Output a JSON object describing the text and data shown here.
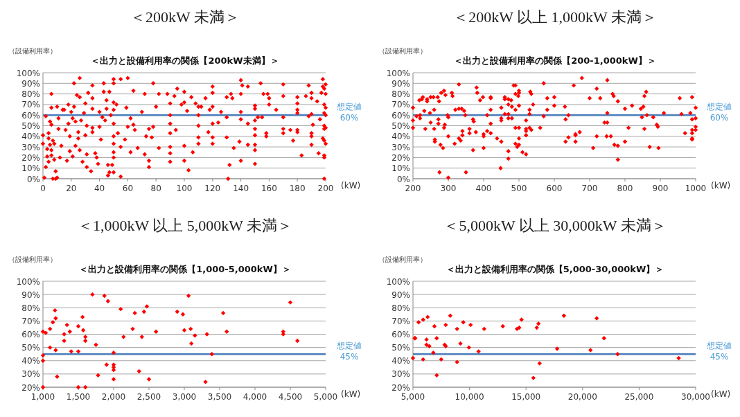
{
  "chart_data": [
    {
      "type": "scatter",
      "title": "＜200kW 未満＞",
      "subtitle": "＜出力と設備利用率の関係【200kW未満】＞",
      "ylabel": "（設備利用率）",
      "xlabel": "(kW)",
      "color": "#ff0000",
      "marker": "diamond",
      "grid": "y",
      "xlim": [
        0,
        200
      ],
      "xticks": [
        0,
        20,
        40,
        60,
        80,
        100,
        120,
        140,
        160,
        180,
        200
      ],
      "ylim": [
        0,
        100
      ],
      "yticks": [
        {
          "value": 0,
          "label": "0%"
        },
        {
          "value": 10,
          "label": "10%"
        },
        {
          "value": 20,
          "label": "20%"
        },
        {
          "value": 30,
          "label": "30%"
        },
        {
          "value": 40,
          "label": "40%"
        },
        {
          "value": 50,
          "label": "50%"
        },
        {
          "value": 60,
          "label": "60%"
        },
        {
          "value": 70,
          "label": "70%"
        },
        {
          "value": 80,
          "label": "80%"
        },
        {
          "value": 90,
          "label": "90%"
        },
        {
          "value": 100,
          "label": "100%"
        }
      ],
      "ref_lines": [
        {
          "axis": "y",
          "value": 60,
          "label": "想定値\n60%",
          "color": "#4a7ebb"
        }
      ],
      "x": [
        0,
        0,
        1,
        2,
        2,
        3,
        3,
        4,
        4,
        4,
        5,
        5,
        6,
        6,
        6,
        6,
        6,
        7,
        7,
        8,
        8,
        9,
        9,
        10,
        10,
        11,
        11,
        12,
        13,
        14,
        15,
        16,
        17,
        18,
        18,
        19,
        19,
        20,
        21,
        21,
        22,
        22,
        23,
        23,
        24,
        25,
        25,
        26,
        26,
        26,
        27,
        28,
        29,
        30,
        30,
        31,
        31,
        31,
        32,
        34,
        35,
        35,
        35,
        35,
        35,
        37,
        38,
        39,
        40,
        40,
        41,
        42,
        43,
        43,
        44,
        45,
        45,
        46,
        46,
        47,
        47,
        48,
        49,
        50,
        50,
        50,
        50,
        50,
        50,
        50,
        50,
        50,
        50,
        52,
        53,
        55,
        55,
        55,
        58,
        59,
        60,
        60,
        62,
        62,
        64,
        64,
        65,
        67,
        70,
        72,
        72,
        73,
        75,
        75,
        75,
        77,
        78,
        78,
        80,
        82,
        82,
        88,
        90,
        90,
        90,
        90,
        90,
        90,
        90,
        93,
        94,
        95,
        98,
        100,
        100,
        100,
        100,
        102,
        103,
        105,
        106,
        108,
        110,
        110,
        110,
        110,
        110,
        112,
        115,
        117,
        118,
        120,
        120,
        120,
        120,
        120,
        120,
        124,
        126,
        130,
        130,
        130,
        131,
        132,
        133,
        134,
        135,
        139,
        140,
        140,
        140,
        140,
        140,
        141,
        145,
        145,
        145,
        150,
        150,
        150,
        150,
        150,
        150,
        150,
        150,
        152,
        154,
        155,
        156,
        158,
        158,
        159,
        160,
        160,
        165,
        170,
        170,
        170,
        170,
        170,
        175,
        177,
        180,
        180,
        180,
        180,
        180,
        180,
        183,
        186,
        188,
        188,
        190,
        190,
        190,
        190,
        190,
        190,
        191,
        194,
        195,
        196,
        197,
        198,
        198,
        198,
        199,
        199,
        199,
        199,
        199,
        199,
        199,
        199,
        199,
        200,
        200,
        200,
        200,
        200,
        200
      ],
      "values": [
        41,
        33,
        1,
        59,
        11,
        28,
        21,
        43,
        38,
        16,
        54,
        32,
        80,
        67,
        51,
        27,
        22,
        36,
        0,
        18,
        33,
        7,
        0,
        68,
        1,
        57,
        47,
        20,
        31,
        65,
        65,
        46,
        17,
        52,
        70,
        40,
        26,
        63,
        21,
        57,
        90,
        68,
        31,
        54,
        79,
        44,
        38,
        95,
        77,
        27,
        55,
        16,
        62,
        41,
        71,
        50,
        23,
        11,
        81,
        7,
        88,
        76,
        66,
        48,
        44,
        24,
        20,
        14,
        63,
        49,
        37,
        58,
        90,
        82,
        55,
        74,
        66,
        13,
        3,
        6,
        82,
        60,
        13,
        94,
        90,
        72,
        65,
        52,
        40,
        33,
        25,
        20,
        6,
        70,
        43,
        94,
        2,
        30,
        37,
        67,
        95,
        49,
        57,
        25,
        83,
        51,
        46,
        29,
        63,
        80,
        23,
        40,
        47,
        17,
        11,
        39,
        90,
        49,
        68,
        80,
        29,
        80,
        71,
        60,
        52,
        43,
        30,
        24,
        16,
        78,
        46,
        85,
        70,
        82,
        72,
        31,
        17,
        64,
        8,
        77,
        25,
        71,
        68,
        60,
        50,
        39,
        33,
        68,
        76,
        44,
        65,
        87,
        81,
        68,
        52,
        39,
        33,
        53,
        63,
        77,
        58,
        39,
        0,
        13,
        80,
        76,
        29,
        35,
        93,
        80,
        63,
        56,
        17,
        88,
        87,
        52,
        32,
        69,
        66,
        55,
        47,
        41,
        32,
        27,
        14,
        58,
        90,
        58,
        80,
        43,
        40,
        80,
        76,
        70,
        65,
        89,
        78,
        58,
        47,
        43,
        46,
        36,
        77,
        71,
        65,
        62,
        46,
        44,
        22,
        78,
        88,
        59,
        81,
        76,
        61,
        43,
        40,
        32,
        51,
        73,
        24,
        56,
        81,
        94,
        87,
        38,
        85,
        70,
        62,
        50,
        47,
        36,
        22,
        20,
        0,
        89,
        80,
        67,
        60,
        48,
        33
      ]
    },
    {
      "type": "scatter",
      "title": "＜200kW 以上 1,000kW 未満＞",
      "subtitle": "＜出力と設備利用率の関係【200-1,000kW】＞",
      "ylabel": "（設備利用率）",
      "xlabel": "(kW)",
      "color": "#ff0000",
      "marker": "diamond",
      "grid": "y",
      "xlim": [
        200,
        1000
      ],
      "xticks": [
        200,
        300,
        400,
        500,
        600,
        700,
        800,
        900,
        1000
      ],
      "ylim": [
        0,
        100
      ],
      "yticks": [
        {
          "value": 0,
          "label": "0%"
        },
        {
          "value": 10,
          "label": "10%"
        },
        {
          "value": 20,
          "label": "20%"
        },
        {
          "value": 30,
          "label": "30%"
        },
        {
          "value": 40,
          "label": "40%"
        },
        {
          "value": 50,
          "label": "50%"
        },
        {
          "value": 60,
          "label": "60%"
        },
        {
          "value": 70,
          "label": "70%"
        },
        {
          "value": 80,
          "label": "80%"
        },
        {
          "value": 90,
          "label": "90%"
        },
        {
          "value": 100,
          "label": "100%"
        }
      ],
      "ref_lines": [
        {
          "axis": "y",
          "value": 60,
          "label": "想定値\n60%",
          "color": "#4a7ebb"
        }
      ],
      "x": [
        200,
        200,
        200,
        210,
        218,
        220,
        220,
        225,
        228,
        232,
        235,
        240,
        240,
        248,
        250,
        250,
        258,
        260,
        260,
        262,
        262,
        270,
        272,
        272,
        274,
        275,
        278,
        280,
        285,
        288,
        288,
        290,
        292,
        298,
        300,
        300,
        300,
        310,
        312,
        318,
        320,
        330,
        330,
        330,
        335,
        338,
        340,
        340,
        345,
        348,
        350,
        360,
        360,
        370,
        370,
        372,
        378,
        380,
        382,
        390,
        398,
        400,
        400,
        400,
        410,
        410,
        420,
        420,
        420,
        420,
        420,
        438,
        448,
        450,
        450,
        450,
        450,
        460,
        460,
        460,
        470,
        470,
        470,
        470,
        470,
        470,
        478,
        480,
        480,
        485,
        490,
        490,
        490,
        490,
        490,
        495,
        498,
        500,
        500,
        500,
        500,
        500,
        500,
        510,
        520,
        520,
        520,
        520,
        520,
        530,
        530,
        530,
        532,
        535,
        535,
        540,
        560,
        570,
        570,
        580,
        580,
        600,
        600,
        630,
        632,
        632,
        640,
        640,
        655,
        660,
        660,
        660,
        672,
        678,
        700,
        710,
        720,
        720,
        730,
        742,
        748,
        750,
        750,
        750,
        760,
        765,
        768,
        770,
        780,
        780,
        780,
        800,
        800,
        810,
        820,
        845,
        848,
        852,
        855,
        855,
        860,
        862,
        870,
        880,
        890,
        893,
        895,
        910,
        955,
        960,
        970,
        985,
        990,
        990,
        990,
        990,
        990,
        990,
        1000,
        1000,
        1000,
        1000
      ],
      "values": [
        67,
        55,
        48,
        59,
        74,
        60,
        57,
        75,
        77,
        64,
        47,
        75,
        73,
        62,
        77,
        53,
        77,
        65,
        47,
        37,
        35,
        77,
        56,
        52,
        73,
        6,
        32,
        81,
        29,
        83,
        48,
        51,
        79,
        60,
        58,
        40,
        1,
        81,
        78,
        33,
        65,
        89,
        66,
        38,
        36,
        66,
        45,
        41,
        64,
        60,
        6,
        47,
        43,
        56,
        27,
        54,
        44,
        86,
        81,
        74,
        77,
        42,
        40,
        29,
        60,
        45,
        77,
        76,
        65,
        52,
        43,
        38,
        10,
        67,
        57,
        55,
        35,
        77,
        75,
        61,
        75,
        70,
        61,
        57,
        26,
        19,
        74,
        68,
        57,
        88,
        88,
        80,
        65,
        48,
        33,
        30,
        78,
        83,
        81,
        69,
        48,
        38,
        32,
        25,
        55,
        47,
        45,
        41,
        23,
        65,
        61,
        48,
        82,
        80,
        46,
        70,
        48,
        90,
        59,
        76,
        65,
        77,
        69,
        68,
        56,
        35,
        60,
        39,
        88,
        42,
        41,
        35,
        44,
        95,
        76,
        29,
        85,
        40,
        76,
        53,
        40,
        93,
        62,
        53,
        40,
        80,
        78,
        32,
        73,
        31,
        18,
        66,
        35,
        48,
        69,
        66,
        58,
        68,
        78,
        47,
        82,
        60,
        30,
        58,
        51,
        49,
        29,
        62,
        76,
        61,
        43,
        62,
        77,
        56,
        46,
        43,
        38,
        37,
        67,
        57,
        49,
        46
      ]
    },
    {
      "type": "scatter",
      "title": "＜1,000kW 以上 5,000kW 未満＞",
      "subtitle": "＜出力と設備利用率の関係【1,000-5,000kW】＞",
      "ylabel": "（設備利用率）",
      "xlabel": "(kW)",
      "color": "#ff0000",
      "marker": "diamond",
      "grid": "y",
      "xlim": [
        1000,
        5000
      ],
      "xticks": [
        {
          "value": 1000,
          "label": "1,000"
        },
        {
          "value": 1500,
          "label": "1,500"
        },
        {
          "value": 2000,
          "label": "2,000"
        },
        {
          "value": 2500,
          "label": "2,500"
        },
        {
          "value": 3000,
          "label": "3,000"
        },
        {
          "value": 3500,
          "label": "3,500"
        },
        {
          "value": 4000,
          "label": "4,000"
        },
        {
          "value": 4500,
          "label": "4,500"
        },
        {
          "value": 5000,
          "label": "5,000"
        }
      ],
      "ylim": [
        20,
        100
      ],
      "yticks": [
        {
          "value": 20,
          "label": "20%"
        },
        {
          "value": 30,
          "label": "30%"
        },
        {
          "value": 40,
          "label": "40%"
        },
        {
          "value": 50,
          "label": "50%"
        },
        {
          "value": 60,
          "label": "60%"
        },
        {
          "value": 70,
          "label": "70%"
        },
        {
          "value": 80,
          "label": "80%"
        },
        {
          "value": 90,
          "label": "90%"
        },
        {
          "value": 100,
          "label": "100%"
        }
      ],
      "ref_lines": [
        {
          "axis": "y",
          "value": 45,
          "label": "想定値\n45%",
          "color": "#4a7ebb"
        }
      ],
      "x": [
        1000,
        1000,
        1000,
        1000,
        1040,
        1100,
        1100,
        1140,
        1170,
        1180,
        1180,
        1200,
        1300,
        1300,
        1340,
        1380,
        1400,
        1500,
        1500,
        1500,
        1560,
        1570,
        1600,
        1600,
        1600,
        1700,
        1750,
        1780,
        1870,
        1900,
        1920,
        2000,
        2000,
        2000,
        2000,
        2000,
        2100,
        2140,
        2270,
        2300,
        2360,
        2400,
        2430,
        2470,
        2500,
        2600,
        2900,
        2980,
        3000,
        3060,
        3090,
        3100,
        3150,
        3300,
        3320,
        3390,
        3550,
        3600,
        4400,
        4400,
        4500,
        4600
      ],
      "values": [
        62,
        44,
        40,
        20,
        61,
        64,
        50,
        69,
        78,
        72,
        48,
        28,
        60,
        55,
        67,
        62,
        47,
        66,
        47,
        20,
        73,
        63,
        58,
        55,
        20,
        90,
        52,
        29,
        89,
        37,
        85,
        46,
        37,
        35,
        33,
        26,
        79,
        58,
        64,
        76,
        32,
        58,
        77,
        81,
        26,
        62,
        77,
        75,
        63,
        89,
        64,
        53,
        59,
        24,
        60,
        45,
        76,
        62,
        62,
        60,
        84,
        55
      ]
    },
    {
      "type": "scatter",
      "title": "＜5,000kW 以上 30,000kW 未満＞",
      "subtitle": "＜出力と設備利用率の関係【5,000-30,000kW】＞",
      "ylabel": "（設備利用率）",
      "xlabel": "(kW)",
      "color": "#ff0000",
      "marker": "diamond",
      "grid": "y",
      "xlim": [
        5000,
        30000
      ],
      "xticks": [
        {
          "value": 5000,
          "label": "5,000"
        },
        {
          "value": 10000,
          "label": "10,000"
        },
        {
          "value": 15000,
          "label": "15,000"
        },
        {
          "value": 20000,
          "label": "20,000"
        },
        {
          "value": 25000,
          "label": "25,000"
        },
        {
          "value": 30000,
          "label": "30,000"
        }
      ],
      "ylim": [
        20,
        100
      ],
      "yticks": [
        {
          "value": 20,
          "label": "20%"
        },
        {
          "value": 30,
          "label": "30%"
        },
        {
          "value": 40,
          "label": "40%"
        },
        {
          "value": 50,
          "label": "50%"
        },
        {
          "value": 60,
          "label": "60%"
        },
        {
          "value": 70,
          "label": "70%"
        },
        {
          "value": 80,
          "label": "80%"
        },
        {
          "value": 90,
          "label": "90%"
        },
        {
          "value": 100,
          "label": "100%"
        }
      ],
      "ref_lines": [
        {
          "axis": "y",
          "value": 45,
          "label": "想定値\n45%",
          "color": "#4a7ebb"
        }
      ],
      "x": [
        5000,
        5150,
        5200,
        5500,
        5900,
        5900,
        6200,
        6200,
        6300,
        6450,
        6800,
        6900,
        7100,
        7100,
        7500,
        7800,
        7900,
        7900,
        8300,
        8900,
        8900,
        9200,
        9450,
        9950,
        10100,
        10800,
        11300,
        12950,
        14200,
        14400,
        14600,
        15650,
        15950,
        16100,
        16200,
        17750,
        18350,
        20700,
        21250,
        21900,
        23100,
        28500
      ],
      "values": [
        42,
        57,
        57,
        69,
        71,
        41,
        52,
        56,
        73,
        51,
        46,
        66,
        57,
        29,
        41,
        52,
        51,
        67,
        74,
        64,
        39,
        53,
        69,
        50,
        67,
        47,
        64,
        66,
        64,
        65,
        71,
        27,
        65,
        68,
        38,
        49,
        74,
        48,
        72,
        57,
        45,
        42
      ]
    }
  ]
}
